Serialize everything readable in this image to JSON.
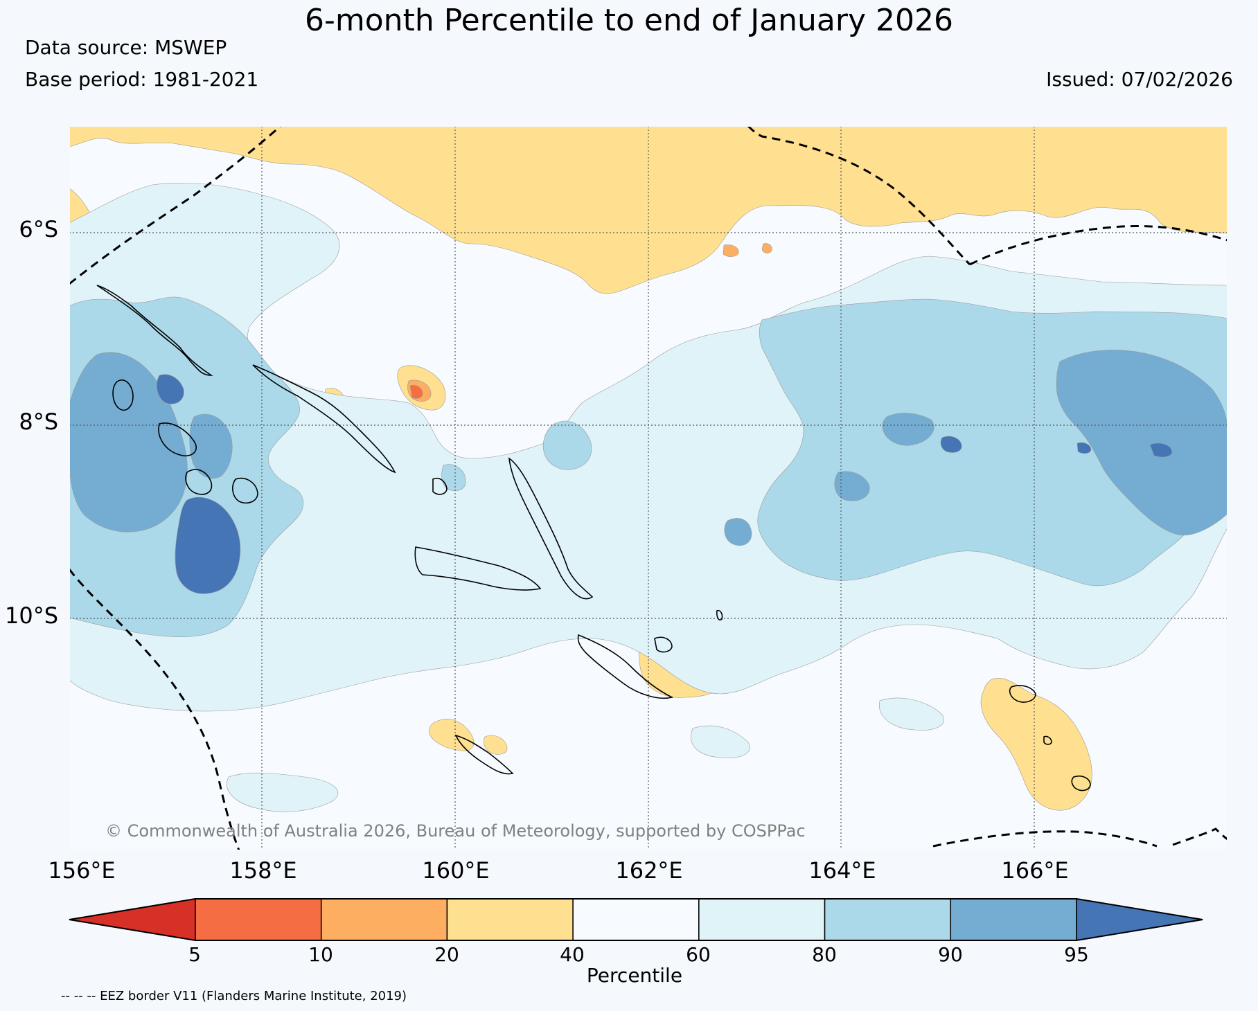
{
  "header": {
    "title": "6-month Percentile to end of January 2026",
    "data_source": "Data source: MSWEP",
    "base_period": "Base period: 1981-2021",
    "issued": "Issued: 07/02/2026"
  },
  "map": {
    "lat_labels": [
      "6°S",
      "8°S",
      "10°S"
    ],
    "lon_labels": [
      "156°E",
      "158°E",
      "160°E",
      "162°E",
      "164°E",
      "166°E"
    ],
    "copyright": "© Commonwealth of Australia 2026, Bureau of Meteorology, supported by COSPPac"
  },
  "colorbar": {
    "ticks": [
      "5",
      "10",
      "20",
      "40",
      "60",
      "80",
      "90",
      "95"
    ],
    "label": "Percentile",
    "colors": [
      "#d73027",
      "#f46d43",
      "#fdae61",
      "#fee090",
      "#f7fbff",
      "#e0f3f8",
      "#abd9e9",
      "#74add1",
      "#4575b4"
    ]
  },
  "legend": {
    "eez": "-- -- -- EEZ border V11 (Flanders Marine Institute, 2019)"
  }
}
